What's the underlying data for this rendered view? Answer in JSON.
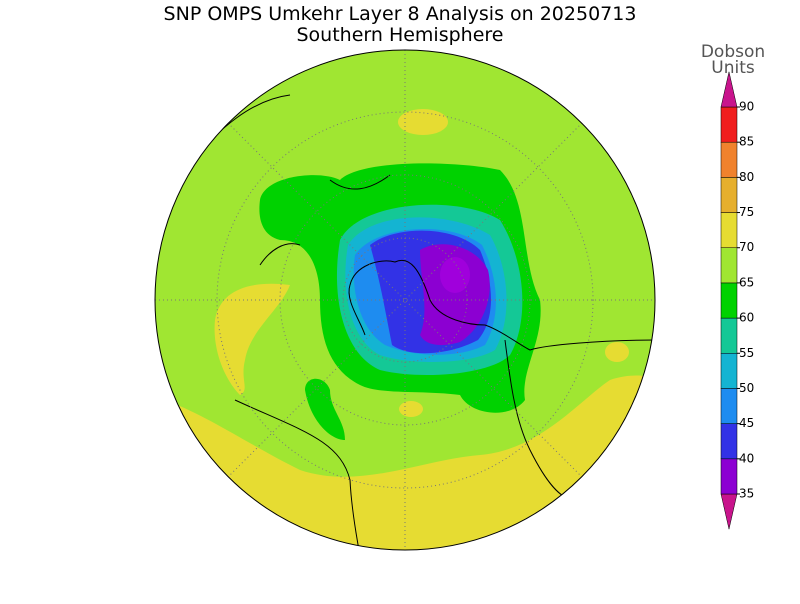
{
  "header": {
    "title": "SNP OMPS Umkehr Layer 8 Analysis on 20250713",
    "subtitle": "Southern Hemisphere"
  },
  "colorbar": {
    "label": [
      "Dobson",
      "Units"
    ],
    "ticks": [
      35,
      40,
      45,
      50,
      55,
      60,
      65,
      70,
      75,
      80,
      85,
      90
    ],
    "colors": [
      "#c8148c",
      "#8c00d2",
      "#3232e6",
      "#1e8cf0",
      "#14b4d2",
      "#14c896",
      "#00d200",
      "#a0e632",
      "#e6dc32",
      "#e6af2d",
      "#f0822d",
      "#f01e1e",
      "#c8148c"
    ]
  }
}
